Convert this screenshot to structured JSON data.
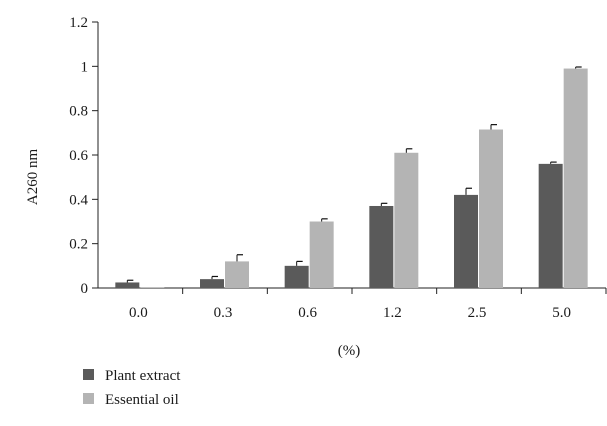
{
  "chart_data": {
    "type": "bar",
    "title": "",
    "xlabel": "(%)",
    "ylabel": "A260 nm",
    "ylim": [
      0,
      1.2
    ],
    "yticks": [
      "0",
      "0.2",
      "0.4",
      "0.6",
      "0.8",
      "1",
      "1.2"
    ],
    "categories": [
      "0.0",
      "0.3",
      "0.6",
      "1.2",
      "2.5",
      "5.0"
    ],
    "series": [
      {
        "name": "Plant extract",
        "color": "#5a5a5a",
        "values": [
          0.025,
          0.04,
          0.1,
          0.37,
          0.42,
          0.56
        ],
        "errors": [
          0.01,
          0.012,
          0.02,
          0.012,
          0.03,
          0.008
        ]
      },
      {
        "name": "Essential oil",
        "color": "#b4b4b4",
        "values": [
          0.003,
          0.12,
          0.3,
          0.61,
          0.715,
          0.99
        ],
        "errors": [
          0.0,
          0.03,
          0.012,
          0.018,
          0.022,
          0.007
        ]
      }
    ],
    "grid": false,
    "legend": "bottom-left"
  }
}
